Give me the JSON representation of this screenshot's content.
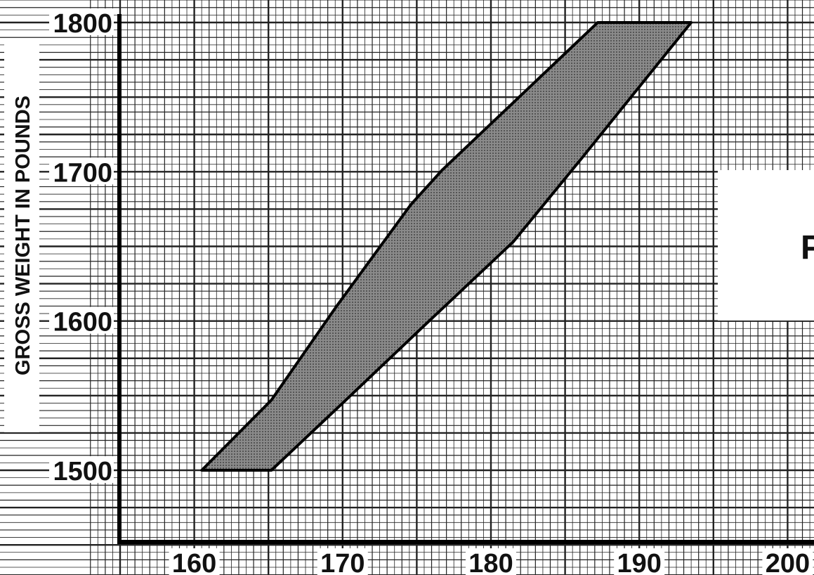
{
  "chart_data": {
    "type": "area",
    "title": "",
    "xlabel": "",
    "ylabel": "GROSS WEIGHT IN POUNDS",
    "xlim": [
      154.5,
      200
    ],
    "ylim": [
      1450,
      1810
    ],
    "x_ticks": [
      "160",
      "170",
      "180",
      "190",
      "200"
    ],
    "y_ticks": [
      "1500",
      "1600",
      "1700",
      "1800"
    ],
    "grid": true,
    "legend": "none",
    "series": [
      {
        "polygon": [
          {
            "x": 160.5,
            "y": 1500
          },
          {
            "x": 165.2,
            "y": 1500
          },
          {
            "x": 170.0,
            "y": 1545
          },
          {
            "x": 175.3,
            "y": 1595
          },
          {
            "x": 181.5,
            "y": 1653
          },
          {
            "x": 186.2,
            "y": 1710
          },
          {
            "x": 193.5,
            "y": 1800
          },
          {
            "x": 187.2,
            "y": 1800
          },
          {
            "x": 176.7,
            "y": 1701
          },
          {
            "x": 174.6,
            "y": 1678
          },
          {
            "x": 169.6,
            "y": 1610
          },
          {
            "x": 165.2,
            "y": 1547
          }
        ]
      }
    ],
    "side_panel_text": "P",
    "colors": {
      "grid": "#222222",
      "band_fill": "#7a7a7a",
      "band_edge": "#000000",
      "background": "#ffffff"
    }
  }
}
